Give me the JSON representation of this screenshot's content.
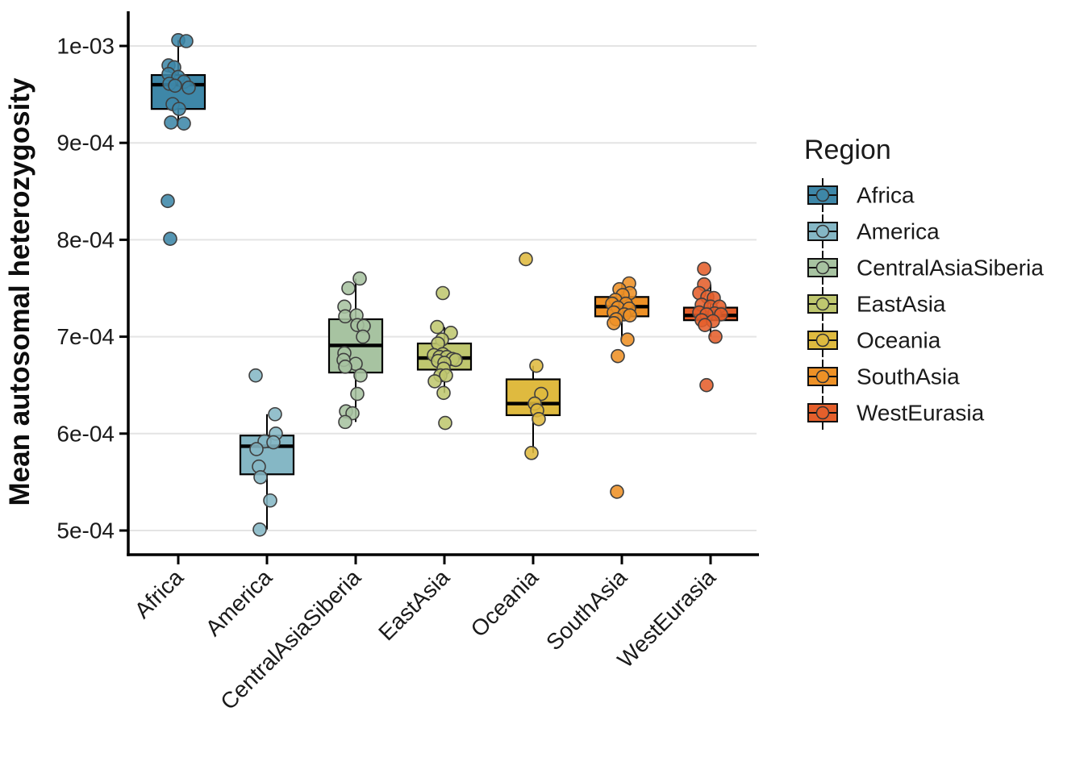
{
  "chart_data": {
    "type": "boxplot",
    "title": "",
    "xlabel": "",
    "ylabel": "Mean autosomal heterozygosity",
    "value_unit": "values are in units of 1e-04 (mean autosomal heterozygosity)",
    "ylim": [
      4.75,
      10.35
    ],
    "grid": "horizontal",
    "legend": {
      "title": "Region",
      "position": "right"
    },
    "yticks": [
      {
        "v": 10,
        "label": "1e-03"
      },
      {
        "v": 9,
        "label": "9e-04"
      },
      {
        "v": 8,
        "label": "8e-04"
      },
      {
        "v": 7,
        "label": "7e-04"
      },
      {
        "v": 6,
        "label": "6e-04"
      },
      {
        "v": 5,
        "label": "5e-04"
      }
    ],
    "categories": [
      "Africa",
      "America",
      "CentralAsiaSiberia",
      "EastAsia",
      "Oceania",
      "SouthAsia",
      "WestEurasia"
    ],
    "point_style": {
      "radius": 8,
      "stroke": "#3F3F3F",
      "fill_opacity": 0.88
    },
    "series": [
      {
        "name": "Africa",
        "color": "#3E87A8",
        "box": {
          "whisker_low": 9.19,
          "q1": 9.35,
          "median": 9.6,
          "q3": 9.7,
          "whisker_high": 10.06
        },
        "points": [
          [
            0,
            10.06
          ],
          [
            10,
            10.05
          ],
          [
            -12,
            9.8
          ],
          [
            -5,
            9.78
          ],
          [
            -12,
            9.71
          ],
          [
            0,
            9.68
          ],
          [
            7,
            9.63
          ],
          [
            -11,
            9.61
          ],
          [
            -4,
            9.59
          ],
          [
            13,
            9.57
          ],
          [
            -7,
            9.4
          ],
          [
            1,
            9.35
          ],
          [
            -9,
            9.21
          ],
          [
            7,
            9.2
          ],
          [
            -13,
            8.4
          ],
          [
            -10,
            8.01
          ]
        ]
      },
      {
        "name": "America",
        "color": "#85B7C5",
        "box": {
          "whisker_low": 5.01,
          "q1": 5.58,
          "median": 5.87,
          "q3": 5.98,
          "whisker_high": 6.2
        },
        "points": [
          [
            -14,
            6.6
          ],
          [
            10,
            6.2
          ],
          [
            11,
            6.0
          ],
          [
            -3,
            5.92
          ],
          [
            8,
            5.91
          ],
          [
            -13,
            5.84
          ],
          [
            -10,
            5.66
          ],
          [
            -8,
            5.55
          ],
          [
            4,
            5.31
          ],
          [
            -9,
            5.01
          ]
        ]
      },
      {
        "name": "CentralAsiaSiberia",
        "color": "#A7C3A1",
        "box": {
          "whisker_low": 6.12,
          "q1": 6.63,
          "median": 6.91,
          "q3": 7.18,
          "whisker_high": 7.6
        },
        "points": [
          [
            5,
            7.6
          ],
          [
            -9,
            7.5
          ],
          [
            -14,
            7.31
          ],
          [
            -13,
            7.21
          ],
          [
            1,
            7.22
          ],
          [
            2,
            7.12
          ],
          [
            10,
            7.11
          ],
          [
            9,
            7.0
          ],
          [
            -14,
            6.83
          ],
          [
            0,
            6.72
          ],
          [
            -15,
            6.76
          ],
          [
            -13,
            6.69
          ],
          [
            6,
            6.6
          ],
          [
            2,
            6.41
          ],
          [
            -12,
            6.23
          ],
          [
            -4,
            6.21
          ],
          [
            -13,
            6.12
          ]
        ]
      },
      {
        "name": "EastAsia",
        "color": "#BFC76F",
        "box": {
          "whisker_low": 6.42,
          "q1": 6.66,
          "median": 6.78,
          "q3": 6.93,
          "whisker_high": 7.1
        },
        "points": [
          [
            -2,
            7.45
          ],
          [
            -9,
            7.1
          ],
          [
            8,
            7.04
          ],
          [
            -3,
            6.97
          ],
          [
            -8,
            6.93
          ],
          [
            -2,
            6.82
          ],
          [
            -13,
            6.81
          ],
          [
            -6,
            6.79
          ],
          [
            3,
            6.79
          ],
          [
            10,
            6.77
          ],
          [
            14,
            6.76
          ],
          [
            -8,
            6.75
          ],
          [
            0,
            6.73
          ],
          [
            -1,
            6.67
          ],
          [
            -5,
            6.6
          ],
          [
            2,
            6.6
          ],
          [
            -12,
            6.54
          ],
          [
            -1,
            6.42
          ],
          [
            1,
            6.11
          ]
        ]
      },
      {
        "name": "Oceania",
        "color": "#DFBA3F",
        "box": {
          "whisker_low": 5.8,
          "q1": 6.19,
          "median": 6.31,
          "q3": 6.56,
          "whisker_high": 6.7
        },
        "points": [
          [
            -9,
            7.8
          ],
          [
            4,
            6.7
          ],
          [
            10,
            6.41
          ],
          [
            2,
            6.31
          ],
          [
            5,
            6.24
          ],
          [
            7,
            6.15
          ],
          [
            -2,
            5.8
          ]
        ]
      },
      {
        "name": "SouthAsia",
        "color": "#EE9126",
        "box": {
          "whisker_low": 6.97,
          "q1": 7.21,
          "median": 7.31,
          "q3": 7.41,
          "whisker_high": 7.55
        },
        "points": [
          [
            9,
            7.55
          ],
          [
            -3,
            7.49
          ],
          [
            10,
            7.45
          ],
          [
            1,
            7.43
          ],
          [
            -8,
            7.38
          ],
          [
            -12,
            7.34
          ],
          [
            5,
            7.34
          ],
          [
            -5,
            7.3
          ],
          [
            9,
            7.29
          ],
          [
            -10,
            7.25
          ],
          [
            3,
            7.23
          ],
          [
            10,
            7.22
          ],
          [
            -7,
            7.18
          ],
          [
            -10,
            7.14
          ],
          [
            7,
            6.97
          ],
          [
            -5,
            6.8
          ],
          [
            -6,
            5.4
          ]
        ]
      },
      {
        "name": "WestEurasia",
        "color": "#E55F2B",
        "box": {
          "whisker_low": 7.0,
          "q1": 7.17,
          "median": 7.22,
          "q3": 7.3,
          "whisker_high": 7.54
        },
        "points": [
          [
            -8,
            7.7
          ],
          [
            -8,
            7.54
          ],
          [
            -14,
            7.45
          ],
          [
            -4,
            7.41
          ],
          [
            4,
            7.4
          ],
          [
            -11,
            7.33
          ],
          [
            0,
            7.31
          ],
          [
            11,
            7.31
          ],
          [
            -14,
            7.25
          ],
          [
            5,
            7.24
          ],
          [
            -5,
            7.23
          ],
          [
            13,
            7.23
          ],
          [
            -11,
            7.17
          ],
          [
            3,
            7.16
          ],
          [
            -7,
            7.12
          ],
          [
            6,
            7.0
          ],
          [
            -5,
            6.5
          ]
        ]
      }
    ]
  }
}
